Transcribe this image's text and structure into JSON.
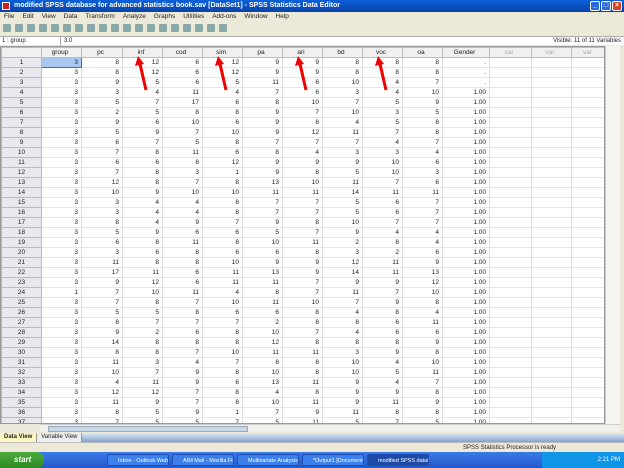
{
  "window": {
    "title": "modified SPSS database for advanced statistics book.sav [DataSet1] - SPSS Statistics Data Editor"
  },
  "menu": [
    "File",
    "Edit",
    "View",
    "Data",
    "Transform",
    "Analyze",
    "Graphs",
    "Utilities",
    "Add-ons",
    "Window",
    "Help"
  ],
  "editor": {
    "cell_ref": "1 : group",
    "cell_value": "3.0",
    "visible": "Visible: 11 of 11 Variables"
  },
  "columns": [
    "group",
    "pc",
    "inf",
    "cod",
    "sim",
    "pa",
    "ari",
    "bd",
    "voc",
    "oa",
    "Gender",
    "var",
    "var",
    "var"
  ],
  "annotations": {
    "arrow_color": "#ee0000",
    "arrowed_columns": [
      "inf",
      "sim",
      "ari",
      "voc"
    ]
  },
  "rows": [
    [
      "3",
      "8",
      "12",
      "6",
      "12",
      "9",
      "9",
      "8",
      "8",
      "8",
      "."
    ],
    [
      "3",
      "8",
      "12",
      "6",
      "12",
      "9",
      "9",
      "8",
      "8",
      "8",
      "."
    ],
    [
      "3",
      "9",
      "5",
      "6",
      "5",
      "11",
      "6",
      "10",
      "4",
      "7",
      "."
    ],
    [
      "3",
      "3",
      "4",
      "11",
      "4",
      "7",
      "6",
      "3",
      "4",
      "10",
      "1.00"
    ],
    [
      "3",
      "5",
      "7",
      "17",
      "6",
      "8",
      "10",
      "7",
      "5",
      "9",
      "1.00"
    ],
    [
      "3",
      "2",
      "5",
      "8",
      "8",
      "9",
      "7",
      "10",
      "3",
      "5",
      "1.00"
    ],
    [
      "3",
      "9",
      "6",
      "10",
      "6",
      "9",
      "8",
      "4",
      "5",
      "8",
      "1.00"
    ],
    [
      "3",
      "5",
      "9",
      "7",
      "10",
      "9",
      "12",
      "11",
      "7",
      "8",
      "1.00"
    ],
    [
      "3",
      "6",
      "7",
      "5",
      "8",
      "7",
      "7",
      "7",
      "4",
      "7",
      "1.00"
    ],
    [
      "3",
      "7",
      "8",
      "11",
      "6",
      "8",
      "4",
      "3",
      "3",
      "4",
      "1.00"
    ],
    [
      "3",
      "6",
      "6",
      "8",
      "12",
      "9",
      "9",
      "9",
      "10",
      "6",
      "1.00"
    ],
    [
      "3",
      "7",
      "8",
      "3",
      "1",
      "9",
      "8",
      "5",
      "10",
      "3",
      "1.00"
    ],
    [
      "3",
      "12",
      "8",
      "7",
      "8",
      "13",
      "10",
      "11",
      "7",
      "6",
      "1.00"
    ],
    [
      "3",
      "10",
      "9",
      "10",
      "10",
      "11",
      "11",
      "14",
      "11",
      "11",
      "1.00"
    ],
    [
      "3",
      "3",
      "4",
      "4",
      "8",
      "7",
      "7",
      "5",
      "6",
      "7",
      "1.00"
    ],
    [
      "3",
      "3",
      "4",
      "4",
      "8",
      "7",
      "7",
      "5",
      "6",
      "7",
      "1.00"
    ],
    [
      "3",
      "8",
      "4",
      "9",
      "7",
      "9",
      "8",
      "10",
      "7",
      "7",
      "1.00"
    ],
    [
      "3",
      "5",
      "9",
      "6",
      "6",
      "5",
      "7",
      "9",
      "4",
      "4",
      "1.00"
    ],
    [
      "3",
      "6",
      "8",
      "11",
      "8",
      "10",
      "11",
      "2",
      "8",
      "4",
      "1.00"
    ],
    [
      "3",
      "3",
      "6",
      "8",
      "6",
      "6",
      "8",
      "3",
      "2",
      "6",
      "1.00"
    ],
    [
      "3",
      "11",
      "8",
      "8",
      "10",
      "9",
      "9",
      "12",
      "11",
      "9",
      "1.00"
    ],
    [
      "3",
      "17",
      "11",
      "6",
      "11",
      "13",
      "9",
      "14",
      "11",
      "13",
      "1.00"
    ],
    [
      "3",
      "9",
      "12",
      "6",
      "11",
      "11",
      "7",
      "9",
      "9",
      "12",
      "1.00"
    ],
    [
      "1",
      "7",
      "10",
      "11",
      "4",
      "8",
      "7",
      "11",
      "7",
      "10",
      "1.00"
    ],
    [
      "3",
      "7",
      "8",
      "7",
      "10",
      "11",
      "10",
      "7",
      "9",
      "8",
      "1.00"
    ],
    [
      "3",
      "5",
      "5",
      "8",
      "6",
      "6",
      "8",
      "4",
      "8",
      "4",
      "1.00"
    ],
    [
      "3",
      "8",
      "7",
      "7",
      "7",
      "2",
      "8",
      "8",
      "6",
      "11",
      "1.00"
    ],
    [
      "3",
      "9",
      "2",
      "6",
      "8",
      "10",
      "7",
      "4",
      "6",
      "6",
      "1.00"
    ],
    [
      "3",
      "14",
      "8",
      "8",
      "8",
      "12",
      "8",
      "8",
      "8",
      "9",
      "1.00"
    ],
    [
      "3",
      "8",
      "8",
      "7",
      "10",
      "11",
      "11",
      "3",
      "9",
      "8",
      "1.00"
    ],
    [
      "3",
      "11",
      "3",
      "4",
      "7",
      "8",
      "8",
      "10",
      "4",
      "10",
      "1.00"
    ],
    [
      "3",
      "10",
      "7",
      "9",
      "8",
      "10",
      "8",
      "10",
      "5",
      "11",
      "1.00"
    ],
    [
      "3",
      "4",
      "11",
      "9",
      "6",
      "13",
      "11",
      "9",
      "4",
      "7",
      "1.00"
    ],
    [
      "3",
      "12",
      "12",
      "7",
      "8",
      "4",
      "8",
      "9",
      "9",
      "8",
      "1.00"
    ],
    [
      "3",
      "11",
      "9",
      "7",
      "8",
      "10",
      "11",
      "9",
      "11",
      "9",
      "1.00"
    ],
    [
      "3",
      "8",
      "5",
      "9",
      "1",
      "7",
      "9",
      "11",
      "8",
      "8",
      "1.00"
    ],
    [
      "3",
      "7",
      "5",
      "5",
      "7",
      "5",
      "11",
      "5",
      "7",
      "5",
      "1.00"
    ]
  ],
  "tabs": [
    "Data View",
    "Variable View"
  ],
  "status": "SPSS Statistics  Processor is ready",
  "taskbar": {
    "start": "start",
    "tasks": [
      "Inbox - Outlook Web ...",
      "AIM Mail - Mozilla Fire...",
      "Multivariate Analysis ...",
      "*Output1 [Document...",
      "modified SPSS databa..."
    ],
    "clock": "2:21 PM"
  }
}
